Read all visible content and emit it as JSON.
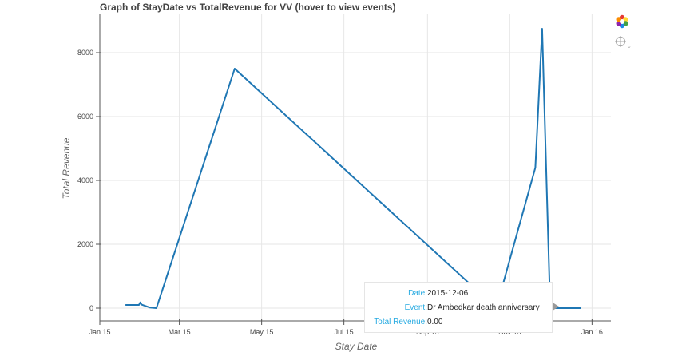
{
  "title": "Graph of StayDate vs TotalRevenue for VV (hover to view events)",
  "toolbar": {
    "logo_icon": "bokeh-logo-icon",
    "hover_icon": "crosshair-hover-icon"
  },
  "tooltip": {
    "rows": [
      {
        "key": "Date:",
        "value": "2015-12-06"
      },
      {
        "key": "Event:",
        "value": "Dr Ambedkar death anniversary"
      },
      {
        "key": "Total Revenue:",
        "value": "0.00"
      }
    ]
  },
  "chart_data": {
    "type": "line",
    "title": "Graph of StayDate vs TotalRevenue for VV (hover to view events)",
    "xlabel": "Stay Date",
    "ylabel": "Total Revenue",
    "xlim": [
      "2015-01-01",
      "2016-01-15"
    ],
    "ylim": [
      -400,
      9200
    ],
    "grid": true,
    "legend": "none",
    "color": "#1f77b4",
    "x_tick_labels": [
      {
        "label": "Jan 15",
        "date": "2015-01-01"
      },
      {
        "label": "Mar 15",
        "date": "2015-03-01"
      },
      {
        "label": "May 15",
        "date": "2015-05-01"
      },
      {
        "label": "Jul 15",
        "date": "2015-07-01"
      },
      {
        "label": "Sep 15",
        "date": "2015-09-01"
      },
      {
        "label": "Nov 15",
        "date": "2015-11-01"
      },
      {
        "label": "Jan 16",
        "date": "2016-01-01"
      }
    ],
    "y_ticks": [
      0,
      2000,
      4000,
      6000,
      8000
    ],
    "series": [
      {
        "x": [
          "2015-01-20",
          "2015-01-30",
          "2015-01-31",
          "2015-02-01",
          "2015-02-07",
          "2015-02-12",
          "2015-04-11",
          "2015-10-22",
          "2015-11-20",
          "2015-11-25",
          "2015-11-28",
          "2015-12-01",
          "2015-12-06",
          "2015-12-24"
        ],
        "y": [
          100,
          100,
          180,
          110,
          20,
          0,
          7500,
          0,
          4400,
          8750,
          4400,
          0,
          0,
          0
        ]
      }
    ]
  }
}
